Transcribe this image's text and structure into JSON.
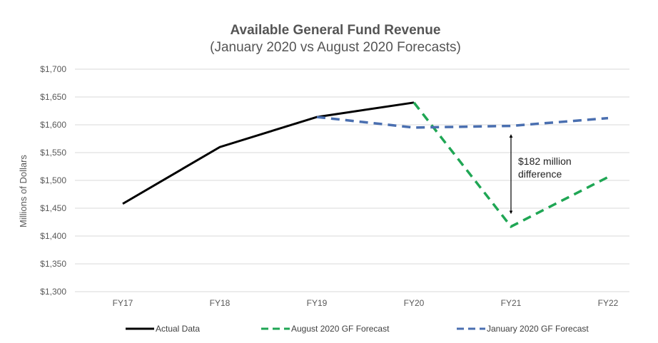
{
  "chart_data": {
    "type": "line",
    "title": "Available General Fund Revenue",
    "subtitle": "(January 2020 vs August 2020 Forecasts)",
    "ylabel": "Millions of Dollars",
    "xlabel": "",
    "categories": [
      "FY17",
      "FY18",
      "FY19",
      "FY20",
      "FY21",
      "FY22"
    ],
    "ylim": [
      1300,
      1700
    ],
    "yticks": [
      1300,
      1350,
      1400,
      1450,
      1500,
      1550,
      1600,
      1650,
      1700
    ],
    "ytick_labels": [
      "$1,300",
      "$1,350",
      "$1,400",
      "$1,450",
      "$1,500",
      "$1,550",
      "$1,600",
      "$1,650",
      "$1,700"
    ],
    "grid": true,
    "legend_position": "bottom",
    "series": [
      {
        "name": "Actual Data",
        "color": "#000000",
        "dash": "solid",
        "values": [
          1458,
          1560,
          1614,
          1640,
          null,
          null
        ]
      },
      {
        "name": "August 2020 GF Forecast",
        "color": "#1fa654",
        "dash": "dashed",
        "values": [
          null,
          null,
          null,
          1640,
          1417,
          1506
        ]
      },
      {
        "name": "January 2020 GF Forecast",
        "color": "#4a6fb0",
        "dash": "dashed",
        "values": [
          null,
          null,
          1614,
          1595,
          1598,
          1612
        ]
      }
    ],
    "annotation": {
      "line1": "$182 million",
      "line2": "difference",
      "category": "FY21",
      "from": 1598,
      "to": 1417
    }
  }
}
